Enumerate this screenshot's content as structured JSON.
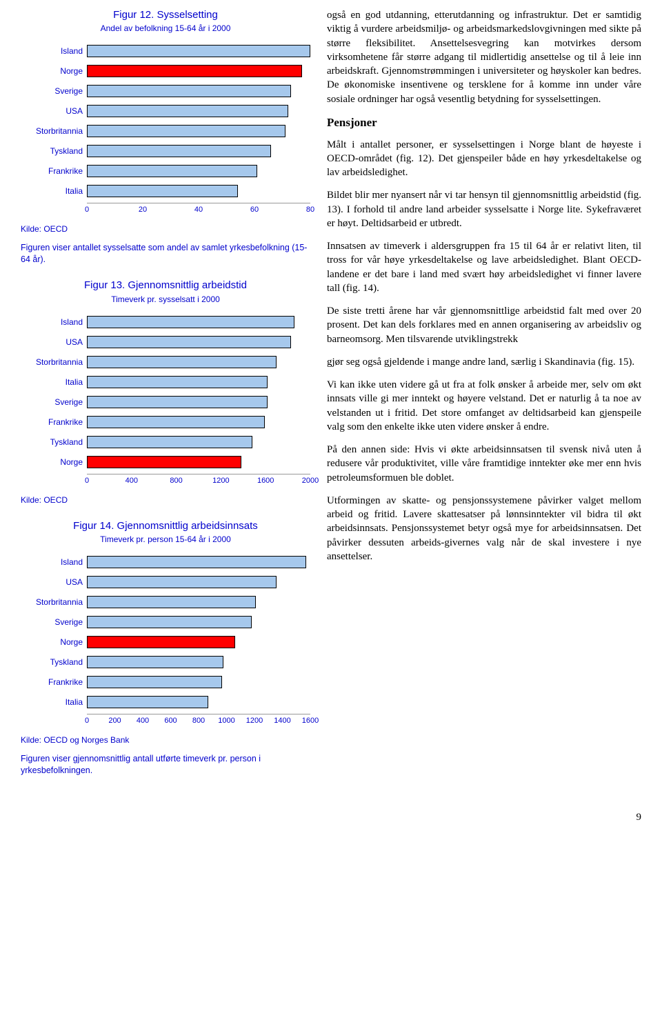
{
  "fig12": {
    "title": "Figur 12. Sysselsetting",
    "subtitle": "Andel av befolkning 15-64 år i 2000",
    "xmax": 80,
    "ticks": [
      0,
      20,
      40,
      60,
      80
    ],
    "bar_fill": "#a6c8ec",
    "highlight_fill": "#ff0000",
    "border": "#000000",
    "rows": [
      {
        "label": "Island",
        "value": 80,
        "hl": false
      },
      {
        "label": "Norge",
        "value": 77,
        "hl": true
      },
      {
        "label": "Sverige",
        "value": 73,
        "hl": false
      },
      {
        "label": "USA",
        "value": 72,
        "hl": false
      },
      {
        "label": "Storbritannia",
        "value": 71,
        "hl": false
      },
      {
        "label": "Tyskland",
        "value": 66,
        "hl": false
      },
      {
        "label": "Frankrike",
        "value": 61,
        "hl": false
      },
      {
        "label": "Italia",
        "value": 54,
        "hl": false
      }
    ],
    "source": "Kilde: OECD",
    "caption": "Figuren viser antallet sysselsatte som andel av samlet yrkesbefolkning (15-64 år)."
  },
  "fig13": {
    "title": "Figur 13. Gjennomsnittlig arbeidstid",
    "subtitle": "Timeverk pr. sysselsatt i 2000",
    "xmax": 2000,
    "ticks": [
      0,
      400,
      800,
      1200,
      1600,
      2000
    ],
    "bar_fill": "#a6c8ec",
    "highlight_fill": "#ff0000",
    "rows": [
      {
        "label": "Island",
        "value": 1860,
        "hl": false
      },
      {
        "label": "USA",
        "value": 1830,
        "hl": false
      },
      {
        "label": "Storbritannia",
        "value": 1700,
        "hl": false
      },
      {
        "label": "Italia",
        "value": 1620,
        "hl": false
      },
      {
        "label": "Sverige",
        "value": 1620,
        "hl": false
      },
      {
        "label": "Frankrike",
        "value": 1590,
        "hl": false
      },
      {
        "label": "Tyskland",
        "value": 1480,
        "hl": false
      },
      {
        "label": "Norge",
        "value": 1380,
        "hl": true
      }
    ],
    "source": "Kilde: OECD"
  },
  "fig14": {
    "title": "Figur 14. Gjennomsnittlig arbeidsinnsats",
    "subtitle": "Timeverk pr. person 15-64 år i 2000",
    "xmax": 1600,
    "ticks": [
      0,
      200,
      400,
      600,
      800,
      1000,
      1200,
      1400,
      1600
    ],
    "bar_fill": "#a6c8ec",
    "highlight_fill": "#ff0000",
    "rows": [
      {
        "label": "Island",
        "value": 1570,
        "hl": false
      },
      {
        "label": "USA",
        "value": 1360,
        "hl": false
      },
      {
        "label": "Storbritannia",
        "value": 1210,
        "hl": false
      },
      {
        "label": "Sverige",
        "value": 1180,
        "hl": false
      },
      {
        "label": "Norge",
        "value": 1060,
        "hl": true
      },
      {
        "label": "Tyskland",
        "value": 980,
        "hl": false
      },
      {
        "label": "Frankrike",
        "value": 970,
        "hl": false
      },
      {
        "label": "Italia",
        "value": 870,
        "hl": false
      }
    ],
    "source": "Kilde: OECD og Norges Bank",
    "caption": "Figuren viser gjennomsnittlig antall utførte timeverk pr. person i yrkesbefolkningen."
  },
  "rightcol": {
    "p1": "også en god utdanning, etterutdanning og infrastruktur. Det er samtidig viktig å vurdere arbeidsmiljø- og arbeidsmarkedslovgivningen med sikte på større fleksibilitet. Ansettelsesvegring kan motvirkes dersom virksomhetene får større adgang til midlertidig ansettelse og til å leie inn arbeidskraft. Gjennomstrømmingen i universiteter og høyskoler kan bedres. De økonomiske insentivene og tersklene for å komme inn under våre sosiale ordninger har også vesentlig betydning for sysselsettingen.",
    "h_pensjoner": "Pensjoner",
    "p2": "Målt i antallet personer, er sysselsettingen i Norge blant de høyeste i OECD-området (fig. 12). Det gjenspeiler både en høy yrkesdeltakelse og lav arbeidsledighet.",
    "p3": "Bildet blir mer nyansert når vi tar hensyn til gjennomsnittlig arbeidstid (fig. 13). I forhold til andre land arbeider sysselsatte i Norge lite. Sykefraværet er høyt. Deltidsarbeid er utbredt.",
    "p4": "Innsatsen av timeverk i aldersgruppen fra 15 til 64 år er relativt liten, til tross for vår høye yrkesdeltakelse og lave arbeidsledighet. Blant OECD-landene er det bare i land med svært høy arbeidsledighet vi finner lavere tall (fig. 14).",
    "p5": "De siste tretti årene har vår gjennomsnittlige arbeidstid falt med over 20 prosent. Det kan dels forklares med en annen organisering av arbeidsliv og barneomsorg. Men tilsvarende utviklingstrekk",
    "p6": "gjør seg også gjeldende i mange andre land, særlig i Skandinavia (fig. 15).",
    "p7": "Vi kan ikke uten videre gå ut fra at folk ønsker å arbeide mer, selv om økt innsats ville gi mer inntekt og høyere velstand. Det er naturlig å ta noe av velstanden ut i fritid. Det store omfanget av deltidsarbeid kan gjenspeile valg som den enkelte ikke uten videre ønsker å endre.",
    "p8": "På den annen side: Hvis vi økte arbeidsinnsatsen til svensk nivå uten å redusere vår produktivitet, ville våre framtidige inntekter øke mer enn hvis petroleumsformuen ble doblet.",
    "p9": "Utformingen av skatte- og pensjonssystemene påvirker valget mellom arbeid og fritid. Lavere skattesatser på lønnsinntekter vil bidra til økt arbeidsinnsats. Pensjonssystemet betyr også mye for arbeidsinnsatsen. Det påvirker dessuten arbeids-givernes valg når de skal investere i nye ansettelser."
  },
  "page_number": "9"
}
